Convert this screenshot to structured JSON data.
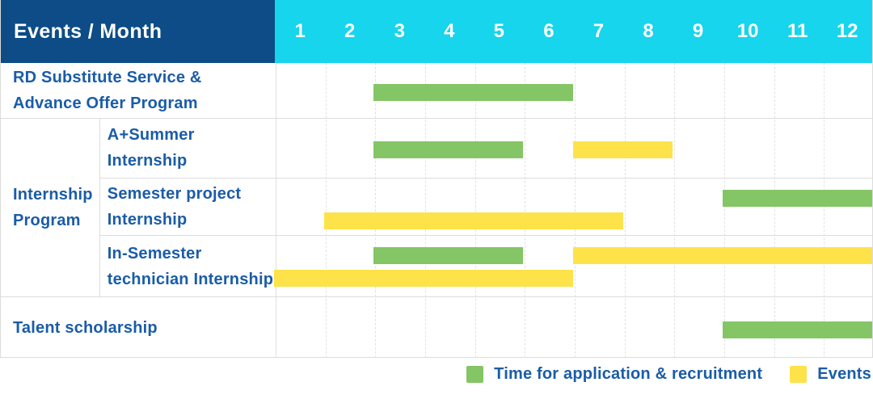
{
  "colors": {
    "navy": "#0d4c86",
    "cyan": "#16d5ec",
    "green": "#84c565",
    "yellow": "#fde249",
    "labelblue": "#1a5ca8"
  },
  "chart_data": {
    "type": "table",
    "subtype": "gantt-schedule",
    "title": "Events / Month",
    "x_unit": "month",
    "months": [
      "1",
      "2",
      "3",
      "4",
      "5",
      "6",
      "7",
      "8",
      "9",
      "10",
      "11",
      "12"
    ],
    "group_label": {
      "line1": "Internship",
      "line2": "Program"
    },
    "rows": [
      {
        "label": "RD Substitute Service & Advance Offer Program",
        "label_line1": "RD Substitute Service &",
        "label_line2": "Advance Offer Program",
        "group": "",
        "bars": [
          {
            "type": "recruitment",
            "start": 3,
            "end": 6,
            "lane": "middle"
          }
        ]
      },
      {
        "label": "A+Summer Internship",
        "label_line1": "A+Summer",
        "label_line2": "Internship",
        "group": "Internship Program",
        "bars": [
          {
            "type": "recruitment",
            "start": 3,
            "end": 5,
            "lane": "middle"
          },
          {
            "type": "event",
            "start": 7,
            "end": 8,
            "lane": "middle"
          }
        ]
      },
      {
        "label": "Semester project Internship",
        "label_line1": "Semester project",
        "label_line2": "Internship",
        "group": "Internship Program",
        "bars": [
          {
            "type": "recruitment",
            "start": 10,
            "end": 12,
            "lane": "top"
          },
          {
            "type": "event",
            "start": 2,
            "end": 7,
            "lane": "bottom"
          }
        ]
      },
      {
        "label": "In-Semester technician Internship",
        "label_line1": "In-Semester",
        "label_line2": "technician Internship",
        "group": "Internship Program",
        "bars": [
          {
            "type": "recruitment",
            "start": 3,
            "end": 5,
            "lane": "top"
          },
          {
            "type": "event",
            "start": 7,
            "end": 12,
            "lane": "top"
          },
          {
            "type": "event",
            "start": 1,
            "end": 6,
            "lane": "bottom"
          }
        ]
      },
      {
        "label": "Talent scholarship",
        "label_line1": "Talent scholarship",
        "label_line2": "",
        "group": "",
        "bars": [
          {
            "type": "recruitment",
            "start": 10,
            "end": 12,
            "lane": "middle"
          }
        ]
      }
    ],
    "legend": {
      "recruitment": "Time for application & recruitment",
      "event": "Events"
    }
  }
}
